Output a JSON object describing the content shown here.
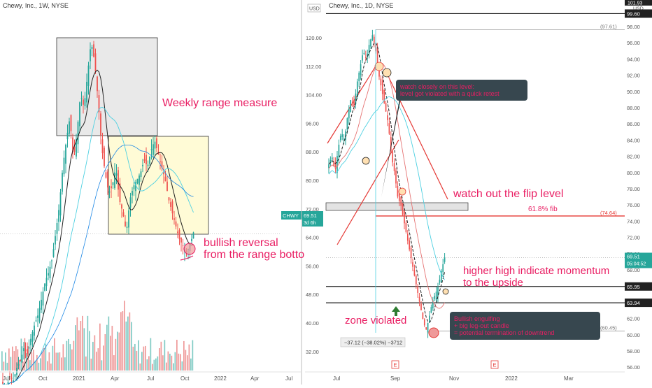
{
  "chart_data": [
    {
      "type": "candlestick",
      "title": "Chewy, Inc., 1W, NYSE",
      "series_name": "CHWY",
      "x_tick_labels": [
        "Jul",
        "Oct",
        "2021",
        "Apr",
        "Jul",
        "Oct",
        "2022",
        "Apr",
        "Jul"
      ],
      "ylim": [
        28,
        136
      ],
      "last_price": "69.51",
      "last_price_countdown": "3d 6h",
      "annotations": {
        "range_measure": "Weekly range measure",
        "reversal_line1": "bullish reversal",
        "reversal_line2": "from the range botto"
      },
      "colors": {
        "up": "#26a69a",
        "down": "#ef5350",
        "note_text": "#e91e63"
      }
    },
    {
      "type": "candlestick",
      "title": "Chewy, Inc., 1D, NYSE",
      "currency": "USD",
      "y_ticks_left": [
        "120.00",
        "112.00",
        "104.00",
        "96.00",
        "88.00",
        "80.00",
        "72.00",
        "64.00",
        "56.00",
        "48.00",
        "40.00",
        "32.00"
      ],
      "y_ticks_right": [
        "98.00",
        "96.00",
        "94.00",
        "92.00",
        "90.00",
        "88.00",
        "86.00",
        "84.00",
        "82.00",
        "80.00",
        "78.00",
        "76.00",
        "74.00",
        "72.00",
        "70.00",
        "68.00",
        "66.00",
        "64.00",
        "62.00",
        "60.00",
        "58.00",
        "56.00"
      ],
      "x_tick_labels": [
        "Jul",
        "Sep",
        "Nov",
        "2022",
        "Mar"
      ],
      "earnings_markers": [
        "E",
        "E"
      ],
      "price_labels": {
        "top": "101.93",
        "high_line": "99.60",
        "last": "69.51",
        "countdown": "05:04:52",
        "level_1": "65.95",
        "level_2": "63.94",
        "fib_value": "(74.64)",
        "peak_value": "(97.61)",
        "low_value": "(60.45)"
      },
      "measure_label": "−37.12 (−38.02%) −3712",
      "annotations": {
        "watch_level_line1": "watch closely on this level:",
        "watch_level_line2": "level got violated with a quick retest",
        "flip_level": "watch out the flip level",
        "fib": "61.8% fib",
        "momentum_line1": "higher high indicate momentum",
        "momentum_line2": "to the upside",
        "zone_violated": "zone violated",
        "engulfing_line1": "Bullish engulfing",
        "engulfing_line2": "+ big leg-out candle",
        "engulfing_line3": "= potential termination of downtrend"
      }
    }
  ]
}
